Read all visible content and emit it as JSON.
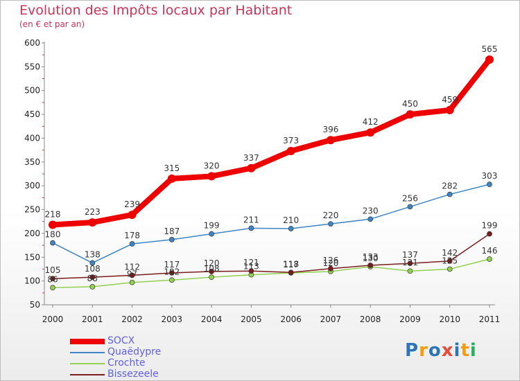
{
  "chart_data": {
    "type": "line",
    "title": "Evolution des Impôts locaux par Habitant",
    "subtitle": "(en € et par an)",
    "x": [
      "2000",
      "2001",
      "2002",
      "2003",
      "2004",
      "2005",
      "2006",
      "2007",
      "2008",
      "2009",
      "2010",
      "2011"
    ],
    "ylim": [
      50,
      600
    ],
    "yticks": [
      50,
      100,
      150,
      200,
      250,
      300,
      350,
      400,
      450,
      500,
      550,
      600
    ],
    "grid": false,
    "legend_position": "bottom-left",
    "series": [
      {
        "name": "SOCX",
        "color": "#ee0000",
        "values": [
          218,
          223,
          239,
          315,
          320,
          337,
          373,
          396,
          412,
          450,
          459,
          565
        ],
        "labels": [
          "218",
          "223",
          "239",
          "315",
          "320",
          "337",
          "373",
          "396",
          "412",
          "450",
          "459",
          "565"
        ]
      },
      {
        "name": "Quaëdypre",
        "color": "#3d85c6",
        "values": [
          180,
          138,
          178,
          187,
          199,
          211,
          210,
          220,
          230,
          256,
          282,
          303
        ],
        "labels": [
          "180",
          "138",
          "178",
          "187",
          "199",
          "211",
          "210",
          "220",
          "230",
          "256",
          "282",
          "303"
        ]
      },
      {
        "name": "Crochte",
        "color": "#92d050",
        "values": [
          86,
          88,
          97,
          102,
          108,
          113,
          117,
          120,
          130,
          121,
          125,
          146
        ],
        "labels": [
          "86",
          "88",
          "97",
          "102",
          "108",
          "113",
          "117",
          "120",
          "130",
          "121",
          "125",
          "146"
        ]
      },
      {
        "name": "Bissezeele",
        "color": "#7b1c1c",
        "values": [
          105,
          108,
          112,
          117,
          120,
          121,
          118,
          126,
          133,
          137,
          142,
          199
        ],
        "labels": [
          "105",
          "108",
          "112",
          "117",
          "120",
          "121",
          "118",
          "126",
          "133",
          "137",
          "142",
          "199"
        ]
      }
    ]
  },
  "logo": {
    "text": "Proxiti",
    "letters": [
      "P",
      "r",
      "o",
      "x",
      "i",
      "t",
      "i"
    ],
    "colors": [
      "#2e75b6",
      "#f39c12",
      "#2e75b6",
      "#e74c3c",
      "#2e75b6",
      "#f39c12",
      "#27ae60"
    ]
  }
}
